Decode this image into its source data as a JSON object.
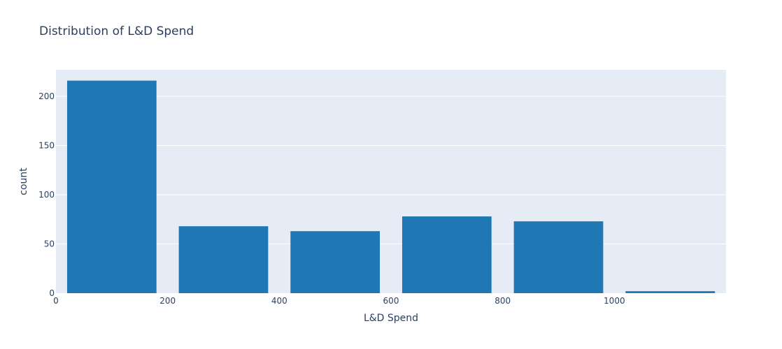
{
  "chart_data": {
    "type": "bar",
    "title": "Distribution of L&D Spend",
    "xlabel": "L&D Spend",
    "ylabel": "count",
    "xlim": [
      0,
      1200
    ],
    "ylim": [
      0,
      227
    ],
    "x_ticks": [
      0,
      200,
      400,
      600,
      800,
      1000
    ],
    "y_ticks": [
      0,
      50,
      100,
      150,
      200
    ],
    "bins": [
      {
        "start": 0,
        "end": 200,
        "value": 216
      },
      {
        "start": 200,
        "end": 400,
        "value": 68
      },
      {
        "start": 400,
        "end": 600,
        "value": 63
      },
      {
        "start": 600,
        "end": 800,
        "value": 78
      },
      {
        "start": 800,
        "end": 1000,
        "value": 73
      },
      {
        "start": 1000,
        "end": 1200,
        "value": 2
      }
    ],
    "bar_color": "#1f77b4",
    "plot_bg": "#e5ecf6",
    "grid": true
  }
}
